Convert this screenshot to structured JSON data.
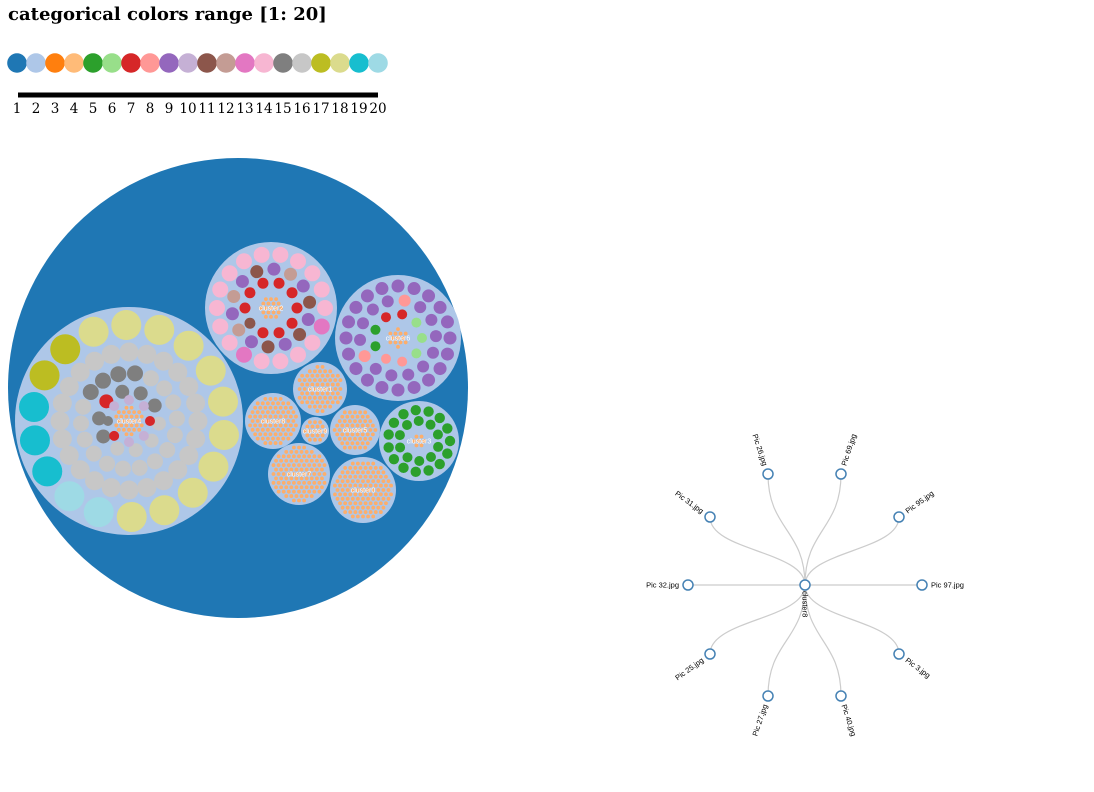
{
  "title": "categorical colors range [1: 20]",
  "palette": [
    "#1f77b4",
    "#aec7e8",
    "#ff7f0e",
    "#ffbb78",
    "#2ca02c",
    "#98df8a",
    "#d62728",
    "#ff9896",
    "#9467bd",
    "#c5b0d5",
    "#8c564b",
    "#c49c94",
    "#e377c2",
    "#f7b6d2",
    "#7f7f7f",
    "#c7c7c7",
    "#bcbd22",
    "#dbdb8d",
    "#17becf",
    "#9edae5"
  ],
  "scale_ticks": [
    "1",
    "2",
    "3",
    "4",
    "5",
    "6",
    "7",
    "8",
    "9",
    "10",
    "11",
    "12",
    "13",
    "14",
    "15",
    "16",
    "17",
    "18",
    "19",
    "20"
  ],
  "pack": {
    "root_color": "#1f77b4",
    "group_color": "#aec7e8",
    "leaf_color": "#fdae6b",
    "clusters": [
      {
        "label": "cluster4"
      },
      {
        "label": "cluster2"
      },
      {
        "label": "cluster6"
      },
      {
        "label": "cluster1"
      },
      {
        "label": "cluster8"
      },
      {
        "label": "cluster9"
      },
      {
        "label": "cluster5"
      },
      {
        "label": "cluster3"
      },
      {
        "label": "cluster7"
      },
      {
        "label": "cluster0"
      }
    ]
  },
  "tree": {
    "center_label": "cluster8",
    "leaves": [
      "Pic 26.jpg",
      "Pic 69.jpg",
      "Pic 95.jpg",
      "Pic 97.jpg",
      "Pic 3.jpg",
      "Pic 40.jpg",
      "Pic 27.jpg",
      "Pic 25.jpg",
      "Pic 32.jpg",
      "Pic 31.jpg"
    ]
  }
}
